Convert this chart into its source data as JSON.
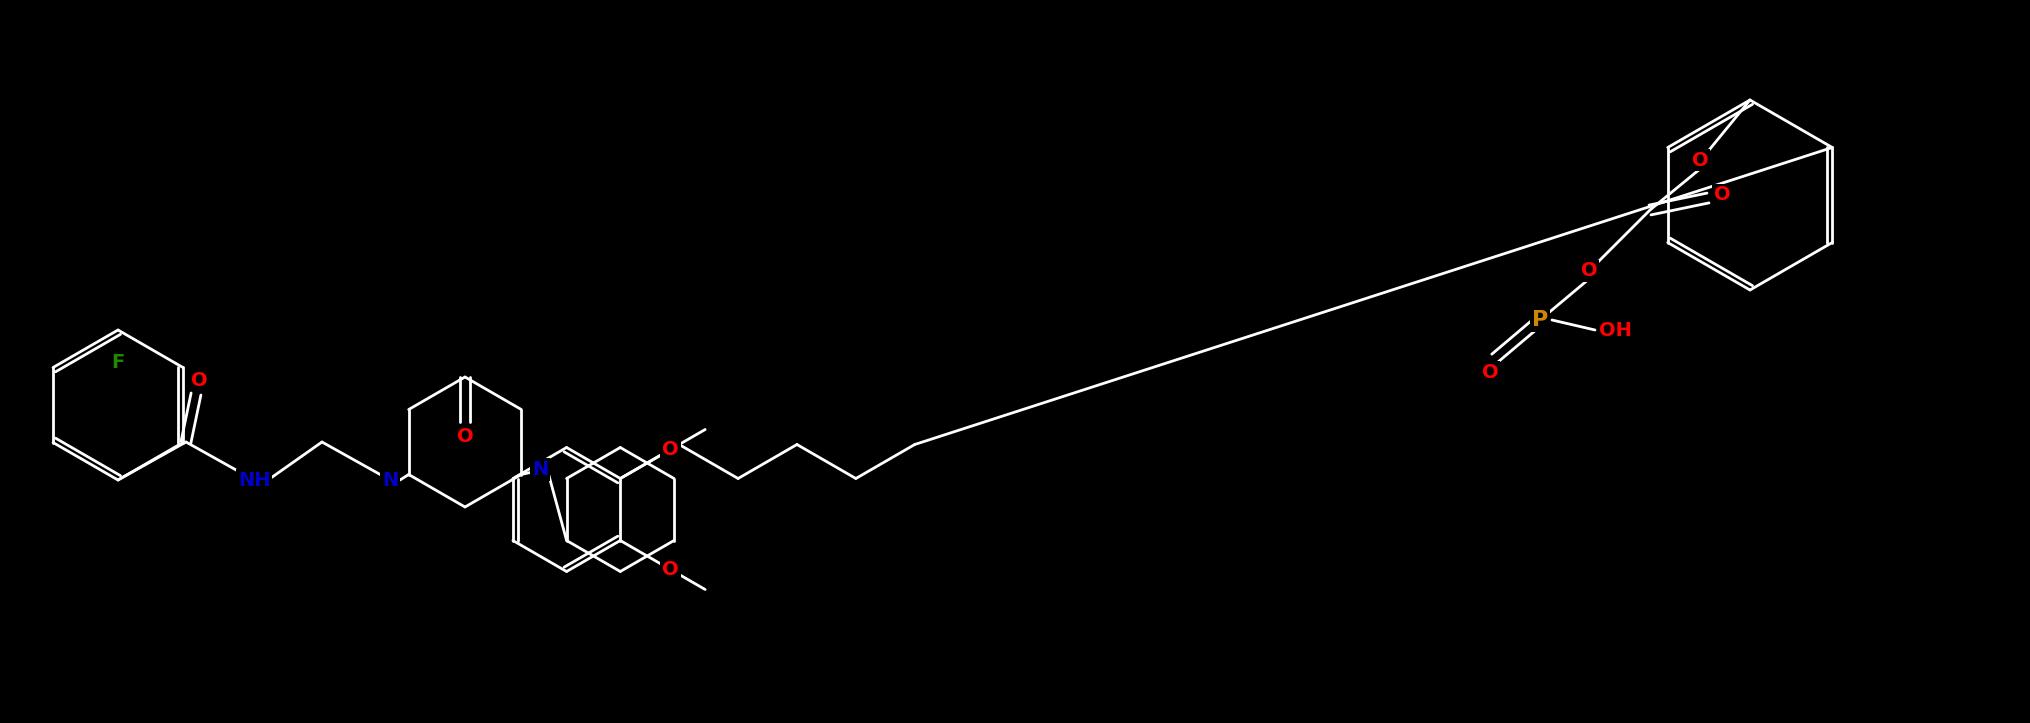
{
  "bg": "#000000",
  "bc": "#ffffff",
  "atom_colors": {
    "O": "#ff0000",
    "N": "#0000cc",
    "F": "#228800",
    "P": "#cc8800"
  },
  "lw": 2.0,
  "fs": 14,
  "fig_w": 20.31,
  "fig_h": 7.23,
  "dpi": 100
}
